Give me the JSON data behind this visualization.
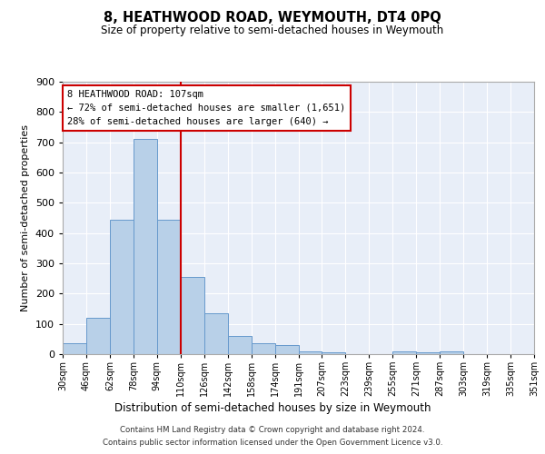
{
  "title": "8, HEATHWOOD ROAD, WEYMOUTH, DT4 0PQ",
  "subtitle": "Size of property relative to semi-detached houses in Weymouth",
  "xlabel": "Distribution of semi-detached houses by size in Weymouth",
  "ylabel": "Number of semi-detached properties",
  "bar_values": [
    35,
    120,
    445,
    710,
    445,
    255,
    135,
    60,
    35,
    30,
    10,
    5,
    0,
    0,
    10,
    5,
    10,
    0,
    0,
    0
  ],
  "bar_labels": [
    "30sqm",
    "46sqm",
    "62sqm",
    "78sqm",
    "94sqm",
    "110sqm",
    "126sqm",
    "142sqm",
    "158sqm",
    "174sqm",
    "191sqm",
    "207sqm",
    "223sqm",
    "239sqm",
    "255sqm",
    "271sqm",
    "287sqm",
    "303sqm",
    "319sqm",
    "335sqm",
    "351sqm"
  ],
  "bar_color": "#b8d0e8",
  "bar_edge_color": "#6699cc",
  "property_line_color": "#cc0000",
  "annotation_text_line1": "8 HEATHWOOD ROAD: 107sqm",
  "annotation_text_line2": "← 72% of semi-detached houses are smaller (1,651)",
  "annotation_text_line3": "28% of semi-detached houses are larger (640) →",
  "annotation_box_color": "#cc0000",
  "ylim": [
    0,
    900
  ],
  "yticks": [
    0,
    100,
    200,
    300,
    400,
    500,
    600,
    700,
    800,
    900
  ],
  "background_color": "#e8eef8",
  "footer_line1": "Contains HM Land Registry data © Crown copyright and database right 2024.",
  "footer_line2": "Contains public sector information licensed under the Open Government Licence v3.0."
}
